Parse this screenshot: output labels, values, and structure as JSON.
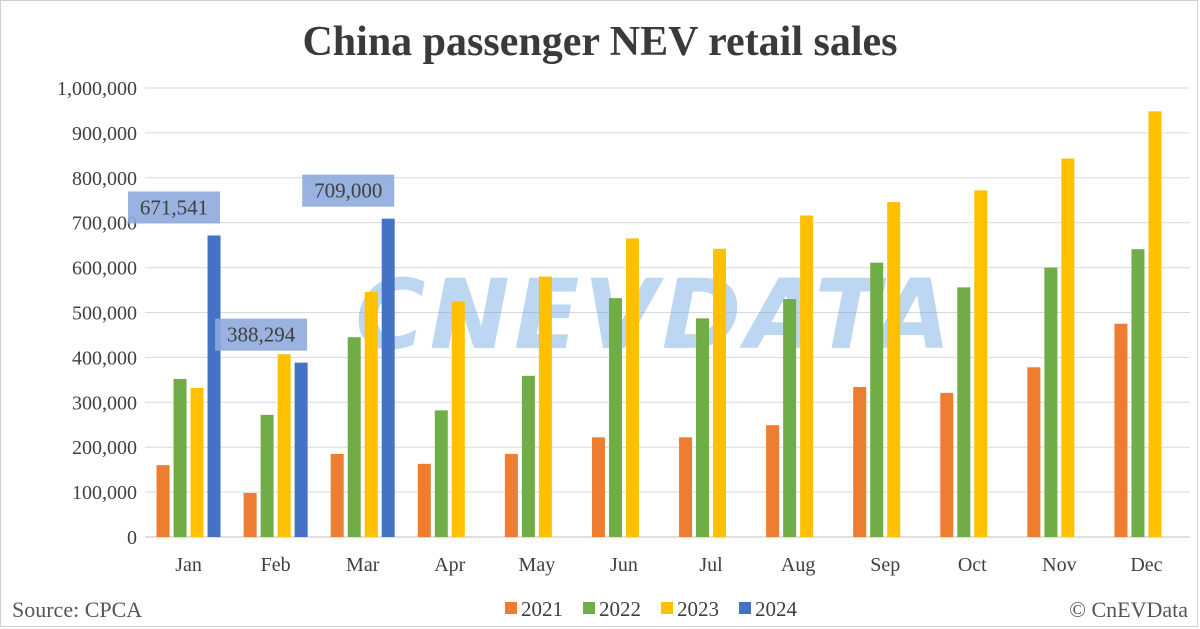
{
  "chart_data": {
    "type": "bar",
    "title": "China passenger NEV retail sales",
    "categories": [
      "Jan",
      "Feb",
      "Mar",
      "Apr",
      "May",
      "Jun",
      "Jul",
      "Aug",
      "Sep",
      "Oct",
      "Nov",
      "Dec"
    ],
    "ylim": [
      0,
      1000000
    ],
    "yticks": [
      0,
      100000,
      200000,
      300000,
      400000,
      500000,
      600000,
      700000,
      800000,
      900000,
      1000000
    ],
    "ytick_labels": [
      "0",
      "100,000",
      "200,000",
      "300,000",
      "400,000",
      "500,000",
      "600,000",
      "700,000",
      "800,000",
      "900,000",
      "1,000,000"
    ],
    "grid": true,
    "legend_position": "bottom",
    "series": [
      {
        "name": "2021",
        "color": "#ed7d31",
        "values": [
          160000,
          98000,
          185000,
          163000,
          185000,
          222000,
          222000,
          249000,
          334000,
          321000,
          378000,
          475000
        ]
      },
      {
        "name": "2022",
        "color": "#70ad47",
        "values": [
          352000,
          272000,
          445000,
          282000,
          359000,
          532000,
          487000,
          530000,
          611000,
          556000,
          600000,
          641000
        ]
      },
      {
        "name": "2023",
        "color": "#ffc000",
        "values": [
          332000,
          407000,
          546000,
          525000,
          580000,
          665000,
          642000,
          716000,
          746000,
          772000,
          843000,
          948000
        ]
      },
      {
        "name": "2024",
        "color": "#4472c4",
        "values": [
          671541,
          388294,
          709000,
          null,
          null,
          null,
          null,
          null,
          null,
          null,
          null,
          null
        ]
      }
    ],
    "annotations": [
      {
        "category": "Jan",
        "series": "2024",
        "text": "671,541"
      },
      {
        "category": "Feb",
        "series": "2024",
        "text": "388,294"
      },
      {
        "category": "Mar",
        "series": "2024",
        "text": "709,000"
      }
    ]
  },
  "footer": {
    "source": "Source: CPCA",
    "copyright": "© CnEVData"
  },
  "watermark": "CNEVDATA"
}
